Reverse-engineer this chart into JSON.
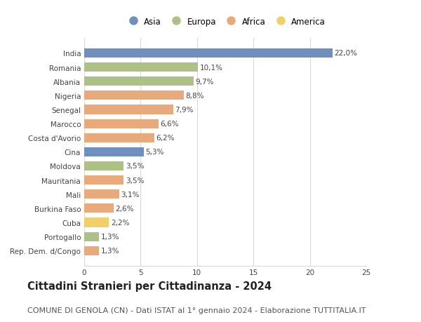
{
  "countries": [
    "India",
    "Romania",
    "Albania",
    "Nigeria",
    "Senegal",
    "Marocco",
    "Costa d'Avorio",
    "Cina",
    "Moldova",
    "Mauritania",
    "Mali",
    "Burkina Faso",
    "Cuba",
    "Portogallo",
    "Rep. Dem. d/Congo"
  ],
  "values": [
    22.0,
    10.1,
    9.7,
    8.8,
    7.9,
    6.6,
    6.2,
    5.3,
    3.5,
    3.5,
    3.1,
    2.6,
    2.2,
    1.3,
    1.3
  ],
  "labels": [
    "22,0%",
    "10,1%",
    "9,7%",
    "8,8%",
    "7,9%",
    "6,6%",
    "6,2%",
    "5,3%",
    "3,5%",
    "3,5%",
    "3,1%",
    "2,6%",
    "2,2%",
    "1,3%",
    "1,3%"
  ],
  "continents": [
    "Asia",
    "Europa",
    "Europa",
    "Africa",
    "Africa",
    "Africa",
    "Africa",
    "Asia",
    "Europa",
    "Africa",
    "Africa",
    "Africa",
    "America",
    "Europa",
    "Africa"
  ],
  "continent_colors": {
    "Asia": "#6f8fbe",
    "Europa": "#adc085",
    "Africa": "#e8aa7a",
    "America": "#f0d06a"
  },
  "legend_order": [
    "Asia",
    "Europa",
    "Africa",
    "America"
  ],
  "title": "Cittadini Stranieri per Cittadinanza - 2024",
  "subtitle": "COMUNE DI GENOLA (CN) - Dati ISTAT al 1° gennaio 2024 - Elaborazione TUTTITALIA.IT",
  "xlim": [
    0,
    25
  ],
  "xticks": [
    0,
    5,
    10,
    15,
    20,
    25
  ],
  "bg_color": "#ffffff",
  "grid_color": "#d8d8d8",
  "bar_height": 0.65,
  "title_fontsize": 10.5,
  "subtitle_fontsize": 8.0,
  "label_fontsize": 7.5,
  "tick_fontsize": 7.5,
  "legend_fontsize": 8.5
}
